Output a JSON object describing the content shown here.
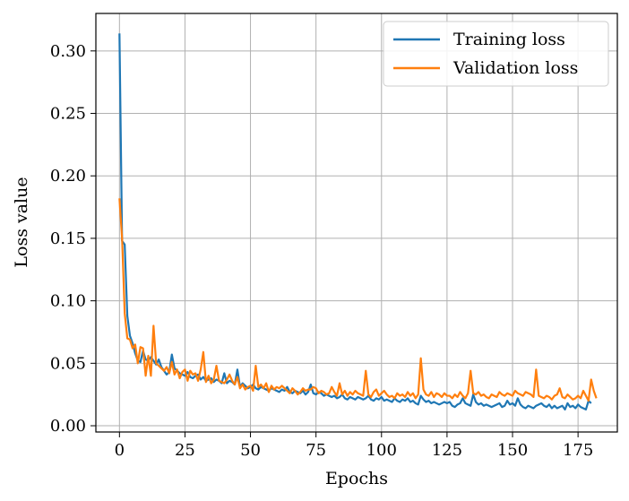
{
  "chart_data": {
    "type": "line",
    "title": "",
    "xlabel": "Epochs",
    "ylabel": "Loss value",
    "xlim": [
      -9,
      190
    ],
    "ylim": [
      -0.005,
      0.33
    ],
    "xticks": [
      0,
      25,
      50,
      75,
      100,
      125,
      150,
      175
    ],
    "xtick_labels": [
      "0",
      "25",
      "50",
      "75",
      "100",
      "125",
      "150",
      "175"
    ],
    "yticks": [
      0.0,
      0.05,
      0.1,
      0.15,
      0.2,
      0.25,
      0.3
    ],
    "ytick_labels": [
      "0.00",
      "0.05",
      "0.10",
      "0.15",
      "0.20",
      "0.25",
      "0.30"
    ],
    "grid": true,
    "legend_position": "top-right",
    "series": [
      {
        "name": "Training loss",
        "color": "#1f77b4",
        "values": [
          0.314,
          0.148,
          0.145,
          0.088,
          0.072,
          0.066,
          0.058,
          0.052,
          0.051,
          0.06,
          0.053,
          0.052,
          0.055,
          0.052,
          0.049,
          0.053,
          0.047,
          0.044,
          0.041,
          0.043,
          0.057,
          0.046,
          0.044,
          0.042,
          0.041,
          0.04,
          0.043,
          0.039,
          0.038,
          0.04,
          0.041,
          0.037,
          0.039,
          0.036,
          0.037,
          0.038,
          0.035,
          0.037,
          0.036,
          0.034,
          0.042,
          0.034,
          0.036,
          0.035,
          0.033,
          0.045,
          0.031,
          0.034,
          0.032,
          0.03,
          0.031,
          0.033,
          0.03,
          0.029,
          0.031,
          0.03,
          0.029,
          0.028,
          0.03,
          0.029,
          0.028,
          0.027,
          0.029,
          0.028,
          0.031,
          0.027,
          0.026,
          0.028,
          0.027,
          0.026,
          0.028,
          0.025,
          0.027,
          0.033,
          0.026,
          0.025,
          0.027,
          0.026,
          0.024,
          0.025,
          0.024,
          0.023,
          0.024,
          0.022,
          0.023,
          0.025,
          0.022,
          0.021,
          0.023,
          0.022,
          0.021,
          0.023,
          0.022,
          0.021,
          0.022,
          0.024,
          0.021,
          0.02,
          0.022,
          0.021,
          0.023,
          0.02,
          0.021,
          0.02,
          0.019,
          0.022,
          0.02,
          0.019,
          0.021,
          0.02,
          0.022,
          0.019,
          0.02,
          0.018,
          0.017,
          0.024,
          0.021,
          0.019,
          0.02,
          0.018,
          0.019,
          0.018,
          0.017,
          0.018,
          0.019,
          0.018,
          0.019,
          0.016,
          0.015,
          0.017,
          0.018,
          0.022,
          0.018,
          0.017,
          0.016,
          0.025,
          0.019,
          0.017,
          0.018,
          0.016,
          0.017,
          0.016,
          0.015,
          0.016,
          0.017,
          0.018,
          0.015,
          0.016,
          0.02,
          0.017,
          0.018,
          0.016,
          0.022,
          0.017,
          0.015,
          0.014,
          0.016,
          0.015,
          0.014,
          0.016,
          0.017,
          0.018,
          0.016,
          0.015,
          0.017,
          0.014,
          0.016,
          0.014,
          0.015,
          0.016,
          0.013,
          0.018,
          0.015,
          0.016,
          0.014,
          0.017,
          0.015,
          0.014,
          0.013,
          0.02,
          0.018
        ]
      },
      {
        "name": "Validation loss",
        "color": "#ff7f0e",
        "values": [
          0.182,
          0.15,
          0.09,
          0.07,
          0.069,
          0.062,
          0.065,
          0.05,
          0.063,
          0.062,
          0.04,
          0.056,
          0.04,
          0.08,
          0.05,
          0.048,
          0.046,
          0.044,
          0.047,
          0.042,
          0.051,
          0.041,
          0.045,
          0.038,
          0.043,
          0.045,
          0.036,
          0.044,
          0.041,
          0.042,
          0.036,
          0.045,
          0.059,
          0.035,
          0.04,
          0.034,
          0.037,
          0.048,
          0.036,
          0.035,
          0.034,
          0.037,
          0.041,
          0.036,
          0.033,
          0.039,
          0.03,
          0.033,
          0.029,
          0.031,
          0.032,
          0.028,
          0.048,
          0.031,
          0.033,
          0.03,
          0.034,
          0.027,
          0.032,
          0.029,
          0.031,
          0.03,
          0.032,
          0.03,
          0.028,
          0.026,
          0.03,
          0.028,
          0.025,
          0.027,
          0.03,
          0.028,
          0.029,
          0.029,
          0.031,
          0.03,
          0.026,
          0.028,
          0.027,
          0.025,
          0.026,
          0.031,
          0.027,
          0.024,
          0.034,
          0.025,
          0.028,
          0.024,
          0.027,
          0.025,
          0.028,
          0.026,
          0.025,
          0.024,
          0.044,
          0.025,
          0.023,
          0.027,
          0.029,
          0.024,
          0.026,
          0.028,
          0.025,
          0.023,
          0.024,
          0.022,
          0.026,
          0.024,
          0.025,
          0.023,
          0.027,
          0.024,
          0.026,
          0.022,
          0.025,
          0.054,
          0.029,
          0.025,
          0.024,
          0.027,
          0.023,
          0.026,
          0.025,
          0.023,
          0.026,
          0.024,
          0.024,
          0.022,
          0.025,
          0.023,
          0.027,
          0.024,
          0.022,
          0.026,
          0.044,
          0.026,
          0.025,
          0.027,
          0.024,
          0.025,
          0.023,
          0.022,
          0.025,
          0.024,
          0.023,
          0.027,
          0.025,
          0.024,
          0.026,
          0.025,
          0.024,
          0.028,
          0.026,
          0.025,
          0.024,
          0.027,
          0.026,
          0.025,
          0.023,
          0.045,
          0.024,
          0.023,
          0.022,
          0.024,
          0.023,
          0.021,
          0.024,
          0.025,
          0.03,
          0.023,
          0.022,
          0.025,
          0.023,
          0.021,
          0.022,
          0.024,
          0.022,
          0.028,
          0.024,
          0.02,
          0.037,
          0.028,
          0.022
        ]
      }
    ]
  }
}
